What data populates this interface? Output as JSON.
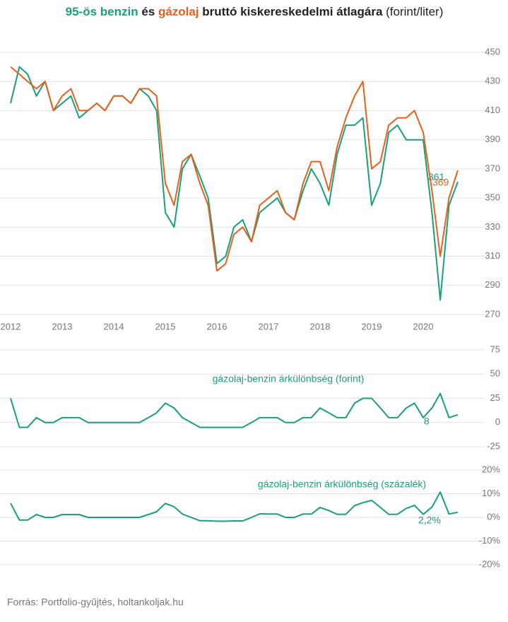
{
  "title": [
    "95-ös benzin",
    " és ",
    "gázolaj",
    " bruttó kiskereskedelmi átlagára ",
    "(forint/liter)"
  ],
  "source": "Forrás: Portfolio-gyűjtés, holtankoljak.hu",
  "chart_data": [
    {
      "type": "line",
      "x": [
        2012.0,
        2012.17,
        2012.33,
        2012.5,
        2012.67,
        2012.83,
        2013.0,
        2013.17,
        2013.33,
        2013.5,
        2013.67,
        2013.83,
        2014.0,
        2014.17,
        2014.33,
        2014.5,
        2014.67,
        2014.83,
        2015.0,
        2015.17,
        2015.33,
        2015.5,
        2015.67,
        2015.83,
        2016.0,
        2016.17,
        2016.33,
        2016.5,
        2016.67,
        2016.83,
        2017.0,
        2017.17,
        2017.33,
        2017.5,
        2017.67,
        2017.83,
        2018.0,
        2018.17,
        2018.33,
        2018.5,
        2018.67,
        2018.83,
        2019.0,
        2019.17,
        2019.33,
        2019.5,
        2019.67,
        2019.83,
        2020.0,
        2020.17,
        2020.33,
        2020.5,
        2020.67
      ],
      "series": [
        {
          "name": "95-ös benzin",
          "color": "#17a07c",
          "values": [
            415,
            440,
            435,
            420,
            430,
            410,
            415,
            420,
            405,
            410,
            415,
            410,
            420,
            420,
            415,
            425,
            420,
            410,
            340,
            330,
            370,
            380,
            365,
            350,
            305,
            310,
            330,
            335,
            320,
            340,
            345,
            350,
            340,
            335,
            355,
            370,
            360,
            345,
            380,
            400,
            400,
            405,
            345,
            360,
            395,
            400,
            390,
            390,
            390,
            340,
            280,
            345,
            361
          ]
        },
        {
          "name": "gázolaj",
          "color": "#ea5f1c",
          "values": [
            440,
            435,
            430,
            425,
            430,
            410,
            420,
            425,
            410,
            410,
            415,
            410,
            420,
            420,
            415,
            425,
            425,
            420,
            360,
            345,
            375,
            380,
            360,
            345,
            300,
            305,
            325,
            330,
            320,
            345,
            350,
            355,
            340,
            335,
            360,
            375,
            375,
            355,
            385,
            405,
            420,
            430,
            370,
            375,
            400,
            405,
            405,
            410,
            395,
            355,
            310,
            350,
            369
          ]
        }
      ],
      "xlim": [
        2012,
        2020.9
      ],
      "xticks": [
        2012,
        2013,
        2014,
        2015,
        2016,
        2017,
        2018,
        2019,
        2020
      ],
      "ylim": [
        265,
        455
      ],
      "yticks": [
        270,
        290,
        310,
        330,
        350,
        370,
        390,
        410,
        430,
        450
      ],
      "grid": true
    },
    {
      "type": "line",
      "annotation": "gázolaj-benzin árkülönbség (forint)",
      "x": [
        2012.0,
        2012.17,
        2012.33,
        2012.5,
        2012.67,
        2012.83,
        2013.0,
        2013.17,
        2013.33,
        2013.5,
        2013.67,
        2013.83,
        2014.0,
        2014.17,
        2014.33,
        2014.5,
        2014.67,
        2014.83,
        2015.0,
        2015.17,
        2015.33,
        2015.5,
        2015.67,
        2015.83,
        2016.0,
        2016.17,
        2016.33,
        2016.5,
        2016.67,
        2016.83,
        2017.0,
        2017.17,
        2017.33,
        2017.5,
        2017.67,
        2017.83,
        2018.0,
        2018.17,
        2018.33,
        2018.5,
        2018.67,
        2018.83,
        2019.0,
        2019.17,
        2019.33,
        2019.5,
        2019.67,
        2019.83,
        2020.0,
        2020.17,
        2020.33,
        2020.5,
        2020.67
      ],
      "series": [
        {
          "color": "#17a07c",
          "values": [
            25,
            -5,
            -5,
            5,
            0,
            0,
            5,
            5,
            5,
            0,
            0,
            0,
            0,
            0,
            0,
            0,
            5,
            10,
            20,
            15,
            5,
            0,
            -5,
            -5,
            -5,
            -5,
            -5,
            -5,
            0,
            5,
            5,
            5,
            0,
            0,
            5,
            5,
            15,
            10,
            5,
            5,
            20,
            25,
            25,
            15,
            5,
            5,
            15,
            20,
            5,
            15,
            30,
            5,
            8
          ]
        }
      ],
      "xlim": [
        2012,
        2020.9
      ],
      "ylim": [
        -30,
        78
      ],
      "yticks": [
        -25,
        0,
        25,
        50,
        75
      ],
      "grid": true
    },
    {
      "type": "line",
      "annotation": "gázolaj-benzin árkülönbség (százalék)",
      "x": [
        2012.0,
        2012.17,
        2012.33,
        2012.5,
        2012.67,
        2012.83,
        2013.0,
        2013.17,
        2013.33,
        2013.5,
        2013.67,
        2013.83,
        2014.0,
        2014.17,
        2014.33,
        2014.5,
        2014.67,
        2014.83,
        2015.0,
        2015.17,
        2015.33,
        2015.5,
        2015.67,
        2015.83,
        2016.0,
        2016.17,
        2016.33,
        2016.5,
        2016.67,
        2016.83,
        2017.0,
        2017.17,
        2017.33,
        2017.5,
        2017.67,
        2017.83,
        2018.0,
        2018.17,
        2018.33,
        2018.5,
        2018.67,
        2018.83,
        2019.0,
        2019.17,
        2019.33,
        2019.5,
        2019.67,
        2019.83,
        2020.0,
        2020.17,
        2020.33,
        2020.5,
        2020.67
      ],
      "series": [
        {
          "color": "#17a07c",
          "values": [
            6.0,
            -1.1,
            -1.1,
            1.2,
            0,
            0,
            1.2,
            1.2,
            1.2,
            0,
            0,
            0,
            0,
            0,
            0,
            0,
            1.2,
            2.4,
            5.9,
            4.5,
            1.4,
            0,
            -1.4,
            -1.4,
            -1.6,
            -1.6,
            -1.5,
            -1.5,
            0,
            1.5,
            1.4,
            1.4,
            0,
            0,
            1.4,
            1.4,
            4.2,
            2.9,
            1.3,
            1.3,
            5.0,
            6.2,
            7.2,
            4.2,
            1.3,
            1.3,
            3.8,
            5.1,
            1.3,
            4.4,
            10.7,
            1.4,
            2.2
          ],
          "value_labels": [
            null,
            null,
            null,
            null,
            null,
            null,
            null,
            null,
            null,
            null,
            null,
            null,
            null,
            null,
            null,
            null,
            null,
            null,
            null,
            null,
            null,
            null,
            null,
            null,
            null,
            null,
            null,
            null,
            null,
            null,
            null,
            null,
            null,
            null,
            null,
            null,
            null,
            null,
            null,
            null,
            null,
            null,
            null,
            null,
            null,
            null,
            null,
            null,
            null,
            null,
            null,
            null,
            "2,2%"
          ]
        }
      ],
      "xlim": [
        2012,
        2020.9
      ],
      "ylim": [
        -22,
        22
      ],
      "yticks": [
        {
          "value": -20,
          "label": "-20%"
        },
        {
          "value": -10,
          "label": "-10%"
        },
        {
          "value": 0,
          "label": "0%"
        },
        {
          "value": 10,
          "label": "10%"
        },
        {
          "value": 20,
          "label": "20%"
        }
      ],
      "grid": true
    }
  ]
}
